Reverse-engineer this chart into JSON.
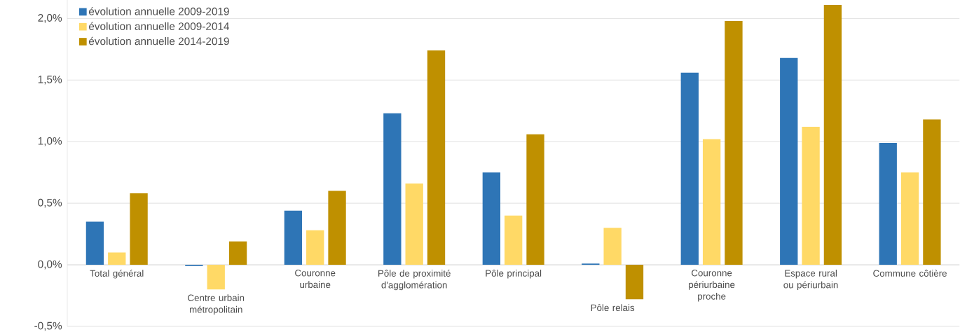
{
  "chart_data": {
    "type": "bar",
    "categories": [
      "Total général",
      "Centre urbain métropolitain",
      "Couronne urbaine",
      "Pôle de proximité d'agglomération",
      "Pôle principal",
      "Pôle relais",
      "Couronne périurbaine proche",
      "Espace rural ou périurbain",
      "Commune côtière"
    ],
    "series": [
      {
        "name": "évolution annuelle 2009-2019",
        "color": "#2e75b6",
        "values": [
          0.35,
          -0.01,
          0.44,
          1.23,
          0.75,
          0.01,
          1.56,
          1.68,
          0.99
        ]
      },
      {
        "name": "évolution annuelle 2009-2014",
        "color": "#ffd966",
        "values": [
          0.1,
          -0.2,
          0.28,
          0.66,
          0.4,
          0.3,
          1.02,
          1.12,
          0.75
        ]
      },
      {
        "name": "évolution annuelle 2014-2019",
        "color": "#bf9000",
        "values": [
          0.58,
          0.19,
          0.6,
          1.74,
          1.06,
          -0.28,
          1.98,
          2.11,
          1.18
        ]
      }
    ],
    "ylim": [
      -0.5,
      2.15
    ],
    "yticks": [
      {
        "value": -0.5,
        "label": "-0,5%"
      },
      {
        "value": 0.0,
        "label": "0,0%"
      },
      {
        "value": 0.5,
        "label": "0,5%"
      },
      {
        "value": 1.0,
        "label": "1,0%"
      },
      {
        "value": 1.5,
        "label": "1,5%"
      },
      {
        "value": 2.0,
        "label": "2,0%"
      }
    ],
    "grid": "y",
    "legend": "top left"
  }
}
